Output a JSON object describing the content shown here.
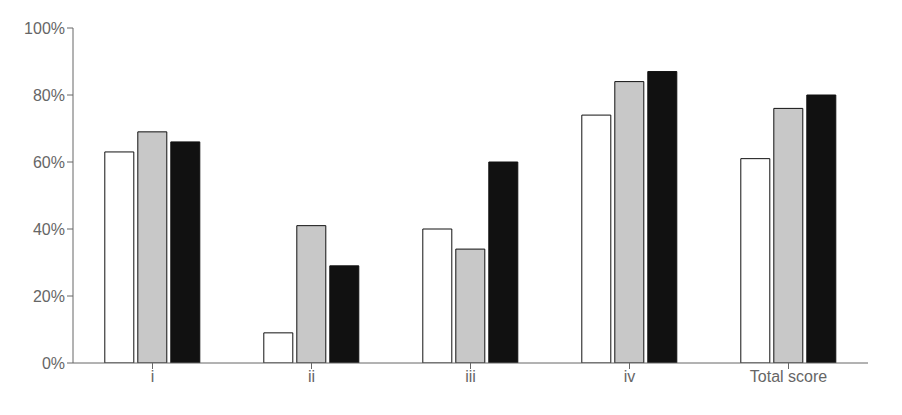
{
  "chart_data": {
    "type": "bar",
    "categories": [
      "i",
      "ii",
      "iii",
      "iv",
      "Total score"
    ],
    "series": [
      {
        "color": "#ffffff",
        "values": [
          0.63,
          0.09,
          0.4,
          0.74,
          0.61
        ]
      },
      {
        "color": "#c8c8c8",
        "values": [
          0.69,
          0.41,
          0.34,
          0.84,
          0.76
        ]
      },
      {
        "color": "#111111",
        "values": [
          0.66,
          0.29,
          0.6,
          0.87,
          0.8
        ]
      }
    ],
    "ylim": [
      0,
      1.0
    ],
    "yticks": [
      {
        "value": 0.0,
        "label": "0%"
      },
      {
        "value": 0.2,
        "label": "20%"
      },
      {
        "value": 0.4,
        "label": "40%"
      },
      {
        "value": 0.6,
        "label": "60%"
      },
      {
        "value": 0.8,
        "label": "80%"
      },
      {
        "value": 1.0,
        "label": "100%"
      }
    ],
    "grid": false
  }
}
